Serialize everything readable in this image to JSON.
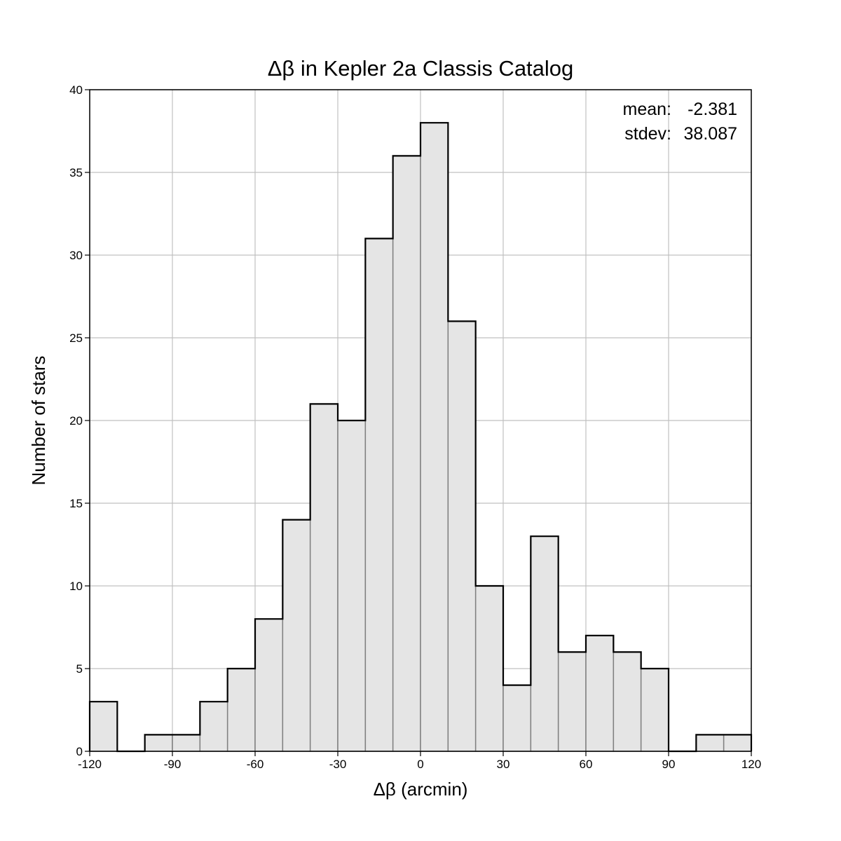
{
  "chart_data": {
    "type": "bar",
    "title": "Δβ in Kepler 2a Classis Catalog",
    "xlabel": "Δβ (arcmin)",
    "ylabel": "Number of stars",
    "xlim": [
      -120,
      120
    ],
    "ylim": [
      0,
      40
    ],
    "x_ticks": [
      -120,
      -90,
      -60,
      -30,
      0,
      30,
      60,
      90,
      120
    ],
    "y_ticks": [
      0,
      5,
      10,
      15,
      20,
      25,
      30,
      35,
      40
    ],
    "bin_width": 10,
    "bin_edges": [
      -120,
      -110,
      -100,
      -90,
      -80,
      -70,
      -60,
      -50,
      -40,
      -30,
      -20,
      -10,
      0,
      10,
      20,
      30,
      40,
      50,
      60,
      70,
      80,
      90,
      100,
      110,
      120
    ],
    "values": [
      3,
      0,
      1,
      1,
      3,
      5,
      8,
      14,
      21,
      20,
      31,
      36,
      38,
      26,
      10,
      4,
      13,
      6,
      7,
      6,
      5,
      0,
      1,
      1
    ],
    "grid": true,
    "bar_color": "#e5e5e5",
    "edge_color": "#000000",
    "annotations": {
      "mean_label": "mean:",
      "mean_value": "-2.381",
      "stdev_label": "stdev:",
      "stdev_value": "38.087",
      "position": "top-right"
    }
  }
}
